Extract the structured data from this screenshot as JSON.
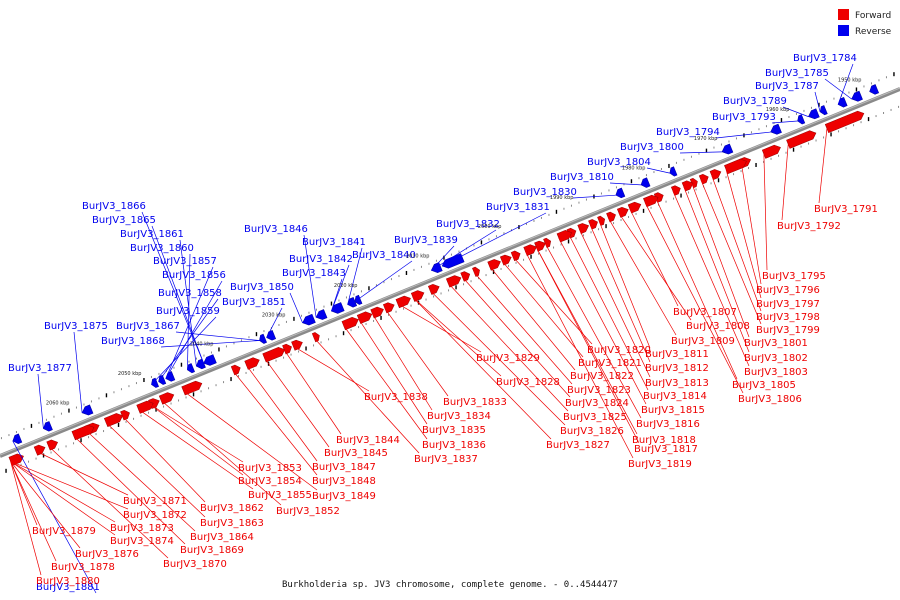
{
  "footer": "Burkholderia sp. JV3 chromosome, complete genome. - 0..4544477",
  "legend": [
    {
      "label": "Forward",
      "color": "#ee0000"
    },
    {
      "label": "Reverse",
      "color": "#0000ee"
    }
  ],
  "colors": {
    "forward": "#ee0000",
    "reverse": "#0000ee",
    "axis": "#777777"
  },
  "kbp_ticks": [
    "1950 kbp",
    "1960 kbp",
    "1970 kbp",
    "1980 kbp",
    "1990 kbp",
    "2000 kbp",
    "2010 kbp",
    "2020 kbp",
    "2030 kbp",
    "2040 kbp",
    "2050 kbp",
    "2060 kbp"
  ],
  "reverse_labels": [
    "BurJV3_1784",
    "BurJV3_1785",
    "BurJV3_1787",
    "BurJV3_1789",
    "BurJV3_1793",
    "BurJV3_1794",
    "BurJV3_1800",
    "BurJV3_1804",
    "BurJV3_1810",
    "BurJV3_1830",
    "BurJV3_1831",
    "BurJV3_1832",
    "BurJV3_1839",
    "BurJV3_1840",
    "BurJV3_1841",
    "BurJV3_1842",
    "BurJV3_1843",
    "BurJV3_1846",
    "BurJV3_1850",
    "BurJV3_1851",
    "BurJV3_1866",
    "BurJV3_1865",
    "BurJV3_1861",
    "BurJV3_1860",
    "BurJV3_1857",
    "BurJV3_1856",
    "BurJV3_1858",
    "BurJV3_1859",
    "BurJV3_1867",
    "BurJV3_1868",
    "BurJV3_1875",
    "BurJV3_1877",
    "BurJV3_1881"
  ],
  "forward_labels": [
    "BurJV3_1791",
    "BurJV3_1792",
    "BurJV3_1795",
    "BurJV3_1796",
    "BurJV3_1797",
    "BurJV3_1798",
    "BurJV3_1799",
    "BurJV3_1801",
    "BurJV3_1802",
    "BurJV3_1803",
    "BurJV3_1805",
    "BurJV3_1806",
    "BurJV3_1807",
    "BurJV3_1808",
    "BurJV3_1809",
    "BurJV3_1811",
    "BurJV3_1812",
    "BurJV3_1813",
    "BurJV3_1814",
    "BurJV3_1815",
    "BurJV3_1816",
    "BurJV3_1817",
    "BurJV3_1818",
    "BurJV3_1819",
    "BurJV3_1820",
    "BurJV3_1821",
    "BurJV3_1822",
    "BurJV3_1823",
    "BurJV3_1824",
    "BurJV3_1825",
    "BurJV3_1826",
    "BurJV3_1827",
    "BurJV3_1828",
    "BurJV3_1829",
    "BurJV3_1833",
    "BurJV3_1834",
    "BurJV3_1835",
    "BurJV3_1836",
    "BurJV3_1837",
    "BurJV3_1838",
    "BurJV3_1844",
    "BurJV3_1845",
    "BurJV3_1847",
    "BurJV3_1848",
    "BurJV3_1849",
    "BurJV3_1852",
    "BurJV3_1853",
    "BurJV3_1854",
    "BurJV3_1855",
    "BurJV3_1862",
    "BurJV3_1863",
    "BurJV3_1864",
    "BurJV3_1869",
    "BurJV3_1870",
    "BurJV3_1871",
    "BurJV3_1872",
    "BurJV3_1873",
    "BurJV3_1874",
    "BurJV3_1876",
    "BurJV3_1878",
    "BurJV3_1879",
    "BurJV3_1880"
  ]
}
